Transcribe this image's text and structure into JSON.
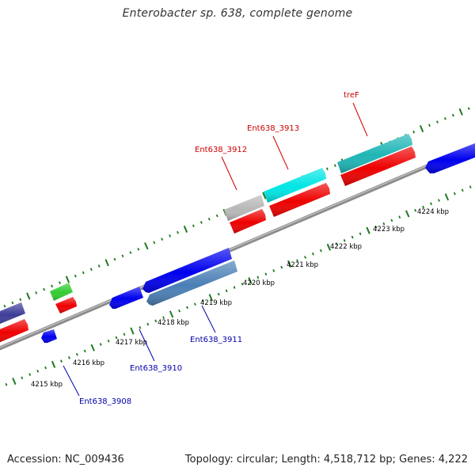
{
  "title": "Enterobacter sp. 638, complete genome",
  "footer": {
    "accession_label": "Accession:",
    "accession": "NC_009436",
    "topology": "Topology: circular; Length: 4,518,712 bp; Genes: 4,222"
  },
  "axis": {
    "tick_labels": [
      "4215 kbp",
      "4216 kbp",
      "4217 kbp",
      "4218 kbp",
      "4219 kbp",
      "4220 kbp",
      "4221 kbp",
      "4222 kbp",
      "4223 kbp",
      "4224 kbp"
    ]
  },
  "gene_labels": [
    {
      "text": "treF",
      "color": "#cc0000"
    },
    {
      "text": "Ent638_3913",
      "color": "#cc0000"
    },
    {
      "text": "Ent638_3912",
      "color": "#cc0000"
    },
    {
      "text": "Ent638_3911",
      "color": "#0000aa"
    },
    {
      "text": "Ent638_3910",
      "color": "#0000aa"
    },
    {
      "text": "Ent638_3908",
      "color": "#0000aa"
    }
  ],
  "colors": {
    "backbone": "#8c8c8c",
    "tick": "#1f7a1f",
    "red_feature": "#ee0000",
    "blue_feature": "#0000ee",
    "cyan_feature": "#00e5e5",
    "teal_feature": "#1fb5b5",
    "steelblue_feature": "#4a7fb5",
    "gray_feature": "#b8b8b8",
    "green_feature": "#33cc33",
    "navy_feature": "#3d3d99"
  }
}
